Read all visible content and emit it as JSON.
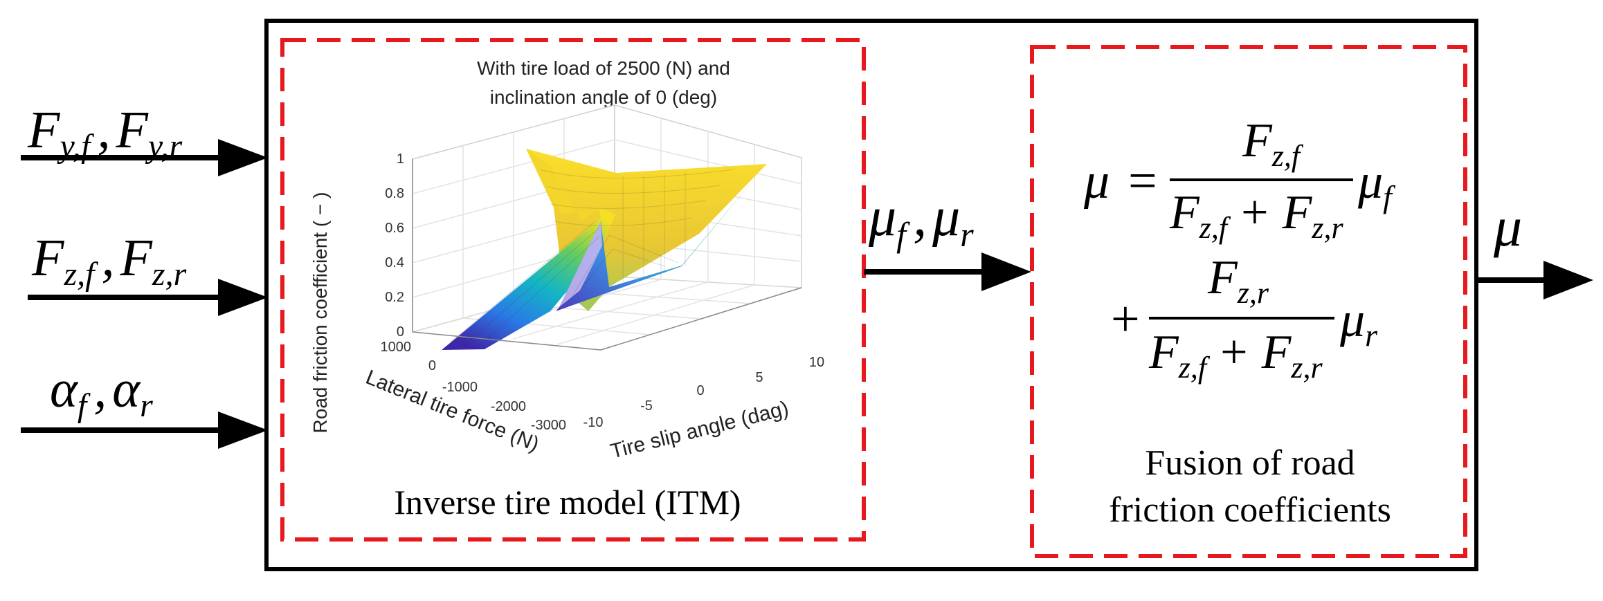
{
  "colors": {
    "outline": "#000000",
    "dashed_box": "#e8191e",
    "background": "#ffffff"
  },
  "inputs": [
    {
      "symbol": "F",
      "sub1": "y,f",
      "sep": ",",
      "symbol2": "F",
      "sub2": "y,r"
    },
    {
      "symbol": "F",
      "sub1": "z,f",
      "sep": ",",
      "symbol2": "F",
      "sub2": "z,r"
    },
    {
      "symbol": "α",
      "sub1": "f",
      "sep": ",",
      "symbol2": "α",
      "sub2": "r"
    }
  ],
  "middle_signal": {
    "symbol": "μ",
    "sub1": "f",
    "sep": ",",
    "symbol2": "μ",
    "sub2": "r"
  },
  "output_signal": {
    "symbol": "μ"
  },
  "itm_block": {
    "caption": "Inverse tire model (ITM)",
    "plot": {
      "title_line1": "With tire load of 2500 (N) and",
      "title_line2": "inclination angle of 0 (deg)",
      "zlabel": "Road friction coefficient ( − )",
      "xlabel": "Lateral tire force (N)",
      "ylabel": "Tire slip angle (dag)",
      "z_ticks": [
        "0",
        "0.2",
        "0.4",
        "0.6",
        "0.8",
        "1"
      ],
      "x_ticks": [
        "1000",
        "0",
        "-1000",
        "-2000",
        "-3000"
      ],
      "y_ticks": [
        "-10",
        "-5",
        "0",
        "5",
        "10"
      ]
    }
  },
  "chart_data": {
    "type": "surface",
    "title": "With tire load of 2500 (N) and inclination angle of 0 (deg)",
    "xlabel": "Lateral tire force (N)",
    "ylabel": "Tire slip angle (dag)",
    "zlabel": "Road friction coefficient ( − )",
    "xlim": [
      -3000,
      1000
    ],
    "ylim": [
      -10,
      10
    ],
    "zlim": [
      0,
      1
    ],
    "x_ticks": [
      1000,
      0,
      -1000,
      -2000,
      -3000
    ],
    "y_ticks": [
      -10,
      -5,
      0,
      5,
      10
    ],
    "z_ticks": [
      0,
      0.2,
      0.4,
      0.6,
      0.8,
      1
    ],
    "colormap": "parula"
  },
  "fusion_block": {
    "caption_line1": "Fusion of road",
    "caption_line2": "friction coefficients",
    "eq": {
      "lhs": "μ",
      "equals": "=",
      "plus": "+",
      "num1": {
        "base": "F",
        "sub": "z,f"
      },
      "num2": {
        "base": "F",
        "sub": "z,r"
      },
      "den_a": {
        "base": "F",
        "sub": "z,f"
      },
      "den_b": {
        "base": "F",
        "sub": "z,r"
      },
      "factor1": {
        "base": "μ",
        "sub": "f"
      },
      "factor2": {
        "base": "μ",
        "sub": "r"
      }
    }
  }
}
